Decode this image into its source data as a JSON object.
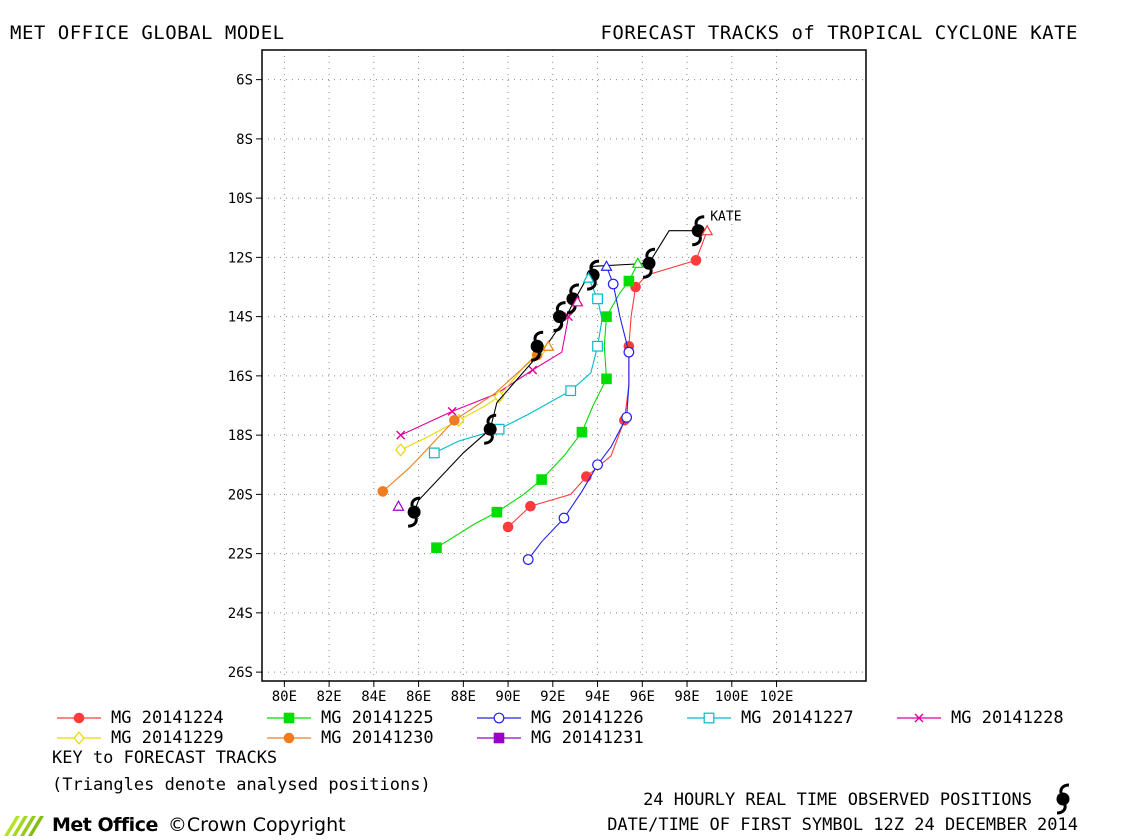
{
  "header": {
    "left_title": "MET OFFICE GLOBAL MODEL",
    "right_title": "FORECAST TRACKS of TROPICAL CYCLONE KATE"
  },
  "chart_data": {
    "type": "line",
    "title": "FORECAST TRACKS of TROPICAL CYCLONE KATE",
    "storm_label": "KATE",
    "x_axis": {
      "range": [
        79,
        106
      ],
      "ticks": [
        80,
        82,
        84,
        86,
        88,
        90,
        92,
        94,
        96,
        98,
        100,
        102
      ],
      "tick_labels": [
        "80E",
        "82E",
        "84E",
        "86E",
        "88E",
        "90E",
        "92E",
        "94E",
        "96E",
        "98E",
        "100E",
        "102E"
      ]
    },
    "y_axis": {
      "range": [
        -5,
        -26.3
      ],
      "ticks": [
        -6,
        -8,
        -10,
        -12,
        -14,
        -16,
        -18,
        -20,
        -22,
        -24,
        -26
      ],
      "tick_labels": [
        "6S",
        "8S",
        "10S",
        "12S",
        "14S",
        "16S",
        "18S",
        "20S",
        "22S",
        "24S",
        "26S"
      ]
    },
    "grid": true,
    "series": [
      {
        "name": "MG 20141224",
        "color": "#ff3b3b",
        "marker": "filled-circle",
        "points": [
          [
            98.9,
            -11.1
          ],
          [
            98.4,
            -12.1
          ],
          [
            96.2,
            -12.6
          ],
          [
            95.7,
            -13.0
          ],
          [
            95.5,
            -14.0
          ],
          [
            95.4,
            -15.0
          ],
          [
            95.4,
            -16.3
          ],
          [
            95.2,
            -17.5
          ],
          [
            94.6,
            -18.7
          ],
          [
            93.5,
            -19.4
          ],
          [
            92.8,
            -20.0
          ],
          [
            91.0,
            -20.4
          ],
          [
            90.0,
            -21.1
          ]
        ]
      },
      {
        "name": "MG 20141225",
        "color": "#00dd00",
        "marker": "filled-square",
        "points": [
          [
            95.8,
            -12.2
          ],
          [
            95.4,
            -12.8
          ],
          [
            95.0,
            -13.2
          ],
          [
            94.4,
            -14.0
          ],
          [
            94.3,
            -15.0
          ],
          [
            94.4,
            -16.1
          ],
          [
            93.8,
            -17.0
          ],
          [
            93.3,
            -17.9
          ],
          [
            92.5,
            -18.7
          ],
          [
            91.5,
            -19.5
          ],
          [
            90.7,
            -20.0
          ],
          [
            89.5,
            -20.6
          ],
          [
            88.5,
            -21.0
          ],
          [
            86.8,
            -21.8
          ]
        ]
      },
      {
        "name": "MG 20141226",
        "color": "#2222ee",
        "marker": "open-circle",
        "points": [
          [
            94.4,
            -12.3
          ],
          [
            94.7,
            -12.9
          ],
          [
            95.0,
            -14.0
          ],
          [
            95.4,
            -15.2
          ],
          [
            95.4,
            -16.3
          ],
          [
            95.3,
            -17.4
          ],
          [
            94.6,
            -18.4
          ],
          [
            94.0,
            -19.0
          ],
          [
            93.3,
            -19.9
          ],
          [
            92.5,
            -20.8
          ],
          [
            91.5,
            -21.6
          ],
          [
            90.9,
            -22.2
          ]
        ]
      },
      {
        "name": "MG 20141227",
        "color": "#00bbcc",
        "marker": "open-square",
        "points": [
          [
            93.6,
            -12.7
          ],
          [
            94.0,
            -13.4
          ],
          [
            94.2,
            -14.1
          ],
          [
            94.0,
            -15.0
          ],
          [
            93.7,
            -15.9
          ],
          [
            92.8,
            -16.5
          ],
          [
            90.9,
            -17.3
          ],
          [
            89.6,
            -17.8
          ],
          [
            87.8,
            -18.2
          ],
          [
            86.7,
            -18.6
          ]
        ]
      },
      {
        "name": "MG 20141228",
        "color": "#e0009a",
        "marker": "x",
        "points": [
          [
            93.1,
            -13.5
          ],
          [
            92.7,
            -14.0
          ],
          [
            92.4,
            -15.2
          ],
          [
            91.1,
            -15.8
          ],
          [
            89.5,
            -16.6
          ],
          [
            87.5,
            -17.2
          ],
          [
            85.2,
            -18.0
          ]
        ]
      },
      {
        "name": "MG 20141229",
        "color": "#e8d800",
        "marker": "open-diamond",
        "points": [
          [
            91.8,
            -15.0
          ],
          [
            91.5,
            -15.1
          ],
          [
            90.7,
            -15.7
          ],
          [
            89.6,
            -16.7
          ],
          [
            89.0,
            -17.0
          ],
          [
            87.8,
            -17.5
          ],
          [
            86.3,
            -18.1
          ],
          [
            85.2,
            -18.5
          ]
        ]
      },
      {
        "name": "MG 20141230",
        "color": "#ef7d20",
        "marker": "filled-circle",
        "points": [
          [
            91.8,
            -15.0
          ],
          [
            91.3,
            -15.3
          ],
          [
            89.4,
            -16.6
          ],
          [
            87.6,
            -17.5
          ],
          [
            85.6,
            -19.1
          ],
          [
            84.4,
            -19.9
          ]
        ]
      },
      {
        "name": "MG 20141231",
        "color": "#9900cc",
        "marker": "filled-square",
        "points": []
      }
    ],
    "analysed_positions": [
      {
        "color": "#ff3b3b",
        "point": [
          98.9,
          -11.1
        ]
      },
      {
        "color": "#00dd00",
        "point": [
          95.8,
          -12.2
        ]
      },
      {
        "color": "#2222ee",
        "point": [
          94.4,
          -12.3
        ]
      },
      {
        "color": "#00bbcc",
        "point": [
          93.6,
          -12.7
        ]
      },
      {
        "color": "#e0009a",
        "point": [
          93.1,
          -13.5
        ]
      },
      {
        "color": "#e8d800",
        "point": [
          91.8,
          -15.0
        ]
      },
      {
        "color": "#ef7d20",
        "point": [
          91.8,
          -15.0
        ]
      },
      {
        "color": "#9900cc",
        "point": [
          85.1,
          -20.4
        ]
      }
    ],
    "observed_track": {
      "color": "#000000",
      "points": [
        [
          98.5,
          -11.1
        ],
        [
          97.2,
          -11.1
        ],
        [
          96.3,
          -12.2
        ],
        [
          93.8,
          -12.3
        ],
        [
          93.6,
          -12.6
        ],
        [
          93.0,
          -13.4
        ],
        [
          92.6,
          -14.0
        ],
        [
          91.7,
          -15.0
        ],
        [
          89.5,
          -16.9
        ],
        [
          89.2,
          -17.8
        ],
        [
          88.0,
          -18.6
        ],
        [
          86.0,
          -20.2
        ],
        [
          85.8,
          -20.6
        ]
      ],
      "symbols": [
        [
          98.5,
          -11.1
        ],
        [
          96.3,
          -12.2
        ],
        [
          93.8,
          -12.6
        ],
        [
          92.9,
          -13.4
        ],
        [
          92.3,
          -14.0
        ],
        [
          91.3,
          -15.0
        ],
        [
          89.2,
          -17.8
        ],
        [
          85.8,
          -20.6
        ]
      ]
    }
  },
  "legend": {
    "row1": [
      "MG 20141224",
      "MG 20141225",
      "MG 20141226",
      "MG 20141227",
      "MG 20141228"
    ],
    "row2": [
      "MG 20141229",
      "MG 20141230",
      "MG 20141231"
    ]
  },
  "key": {
    "line1": "KEY to FORECAST TRACKS",
    "line2": "(Triangles denote analysed positions)"
  },
  "footer": {
    "observed_label": "24 HOURLY REAL TIME OBSERVED POSITIONS",
    "datetime_label": "DATE/TIME OF FIRST SYMBOL 12Z 24 DECEMBER 2014",
    "logo_text": "Met Office",
    "copyright": "©Crown Copyright"
  }
}
